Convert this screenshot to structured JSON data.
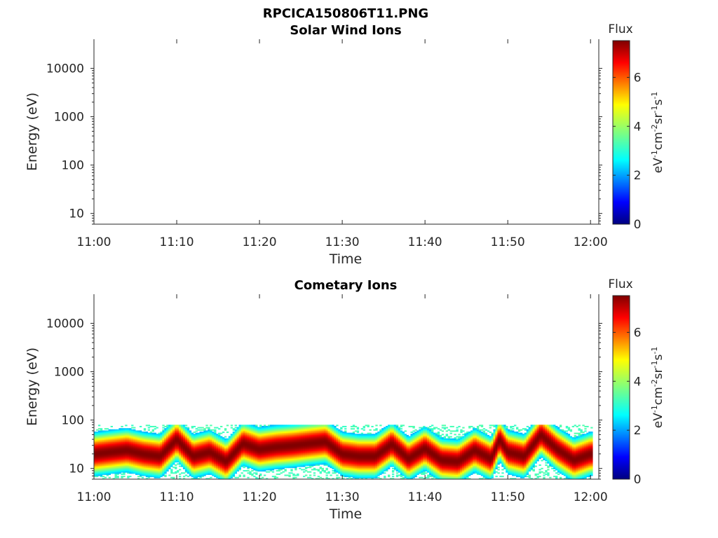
{
  "chart_data": [
    {
      "type": "heatmap",
      "figure_title": "RPCICA150806T11.PNG",
      "title": "Solar Wind Ions",
      "xlabel": "Time",
      "ylabel": "Energy (eV)",
      "x_tick_labels": [
        "11:00",
        "11:10",
        "11:20",
        "11:30",
        "11:40",
        "11:50",
        "12:00"
      ],
      "x_tick_minutes": [
        0,
        10,
        20,
        30,
        40,
        50,
        60
      ],
      "xlim_minutes": [
        0,
        61
      ],
      "y_scale": "log",
      "ylim": [
        6,
        40000
      ],
      "y_tick_labels": [
        "10",
        "100",
        "1000",
        "10000"
      ],
      "y_tick_values": [
        10,
        100,
        1000,
        10000
      ],
      "colorbar": {
        "title": "Flux",
        "label": "eV-1cm-2sr-1s-1",
        "range": [
          0,
          7.5
        ],
        "tick_labels": [
          "0",
          "2",
          "4",
          "6"
        ],
        "tick_values": [
          0,
          2,
          4,
          6
        ],
        "colormap": "jet"
      },
      "data_present": false
    },
    {
      "type": "heatmap",
      "title": "Cometary Ions",
      "xlabel": "Time",
      "ylabel": "Energy (eV)",
      "x_tick_labels": [
        "11:00",
        "11:10",
        "11:20",
        "11:30",
        "11:40",
        "11:50",
        "12:00"
      ],
      "x_tick_minutes": [
        0,
        10,
        20,
        30,
        40,
        50,
        60
      ],
      "xlim_minutes": [
        0,
        61
      ],
      "y_scale": "log",
      "ylim": [
        6,
        40000
      ],
      "y_tick_labels": [
        "10",
        "100",
        "1000",
        "10000"
      ],
      "y_tick_values": [
        10,
        100,
        1000,
        10000
      ],
      "colorbar": {
        "title": "Flux",
        "label": "eV-1cm-2sr-1s-1",
        "range": [
          0,
          7.5
        ],
        "tick_labels": [
          "0",
          "2",
          "4",
          "6"
        ],
        "tick_values": [
          0,
          2,
          4,
          6
        ],
        "colormap": "jet"
      },
      "data_present": true,
      "peak_energy_eV_by_minute": [
        {
          "minute": 0,
          "peak_energy": 20
        },
        {
          "minute": 2,
          "peak_energy": 22
        },
        {
          "minute": 4,
          "peak_energy": 24
        },
        {
          "minute": 6,
          "peak_energy": 20
        },
        {
          "minute": 8,
          "peak_energy": 18
        },
        {
          "minute": 10,
          "peak_energy": 40
        },
        {
          "minute": 12,
          "peak_energy": 18
        },
        {
          "minute": 14,
          "peak_energy": 22
        },
        {
          "minute": 16,
          "peak_energy": 14
        },
        {
          "minute": 18,
          "peak_energy": 33
        },
        {
          "minute": 20,
          "peak_energy": 25
        },
        {
          "minute": 22,
          "peak_energy": 28
        },
        {
          "minute": 24,
          "peak_energy": 30
        },
        {
          "minute": 26,
          "peak_energy": 33
        },
        {
          "minute": 28,
          "peak_energy": 36
        },
        {
          "minute": 30,
          "peak_energy": 20
        },
        {
          "minute": 32,
          "peak_energy": 18
        },
        {
          "minute": 34,
          "peak_energy": 18
        },
        {
          "minute": 36,
          "peak_energy": 32
        },
        {
          "minute": 38,
          "peak_energy": 16
        },
        {
          "minute": 40,
          "peak_energy": 26
        },
        {
          "minute": 42,
          "peak_energy": 15
        },
        {
          "minute": 44,
          "peak_energy": 14
        },
        {
          "minute": 46,
          "peak_energy": 24
        },
        {
          "minute": 48,
          "peak_energy": 16
        },
        {
          "minute": 49,
          "peak_energy": 40
        },
        {
          "minute": 50,
          "peak_energy": 22
        },
        {
          "minute": 52,
          "peak_energy": 18
        },
        {
          "minute": 54,
          "peak_energy": 50
        },
        {
          "minute": 56,
          "peak_energy": 25
        },
        {
          "minute": 58,
          "peak_energy": 15
        },
        {
          "minute": 60,
          "peak_energy": 20
        }
      ],
      "flux_range_energy_eV": [
        6,
        80
      ]
    }
  ]
}
